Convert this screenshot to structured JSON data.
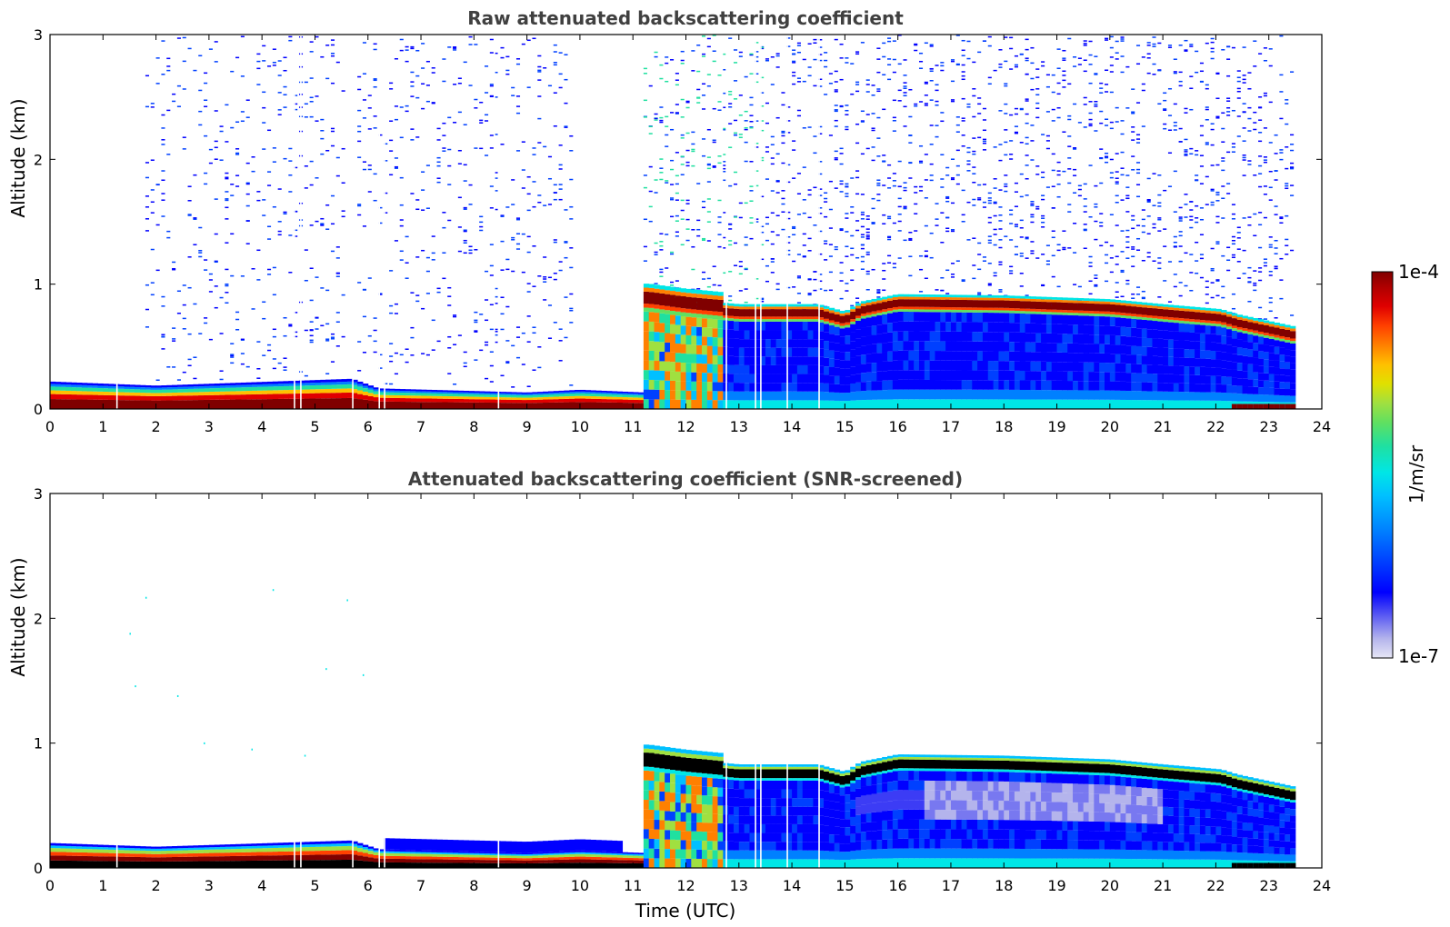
{
  "chart_data": [
    {
      "type": "heatmap",
      "title": "Raw attenuated backscattering coefficient",
      "xlabel": "",
      "ylabel": "Altitude (km)",
      "xlim": [
        0,
        24
      ],
      "ylim": [
        0,
        3
      ],
      "x_ticks": [
        "0",
        "1",
        "2",
        "3",
        "4",
        "5",
        "6",
        "7",
        "8",
        "9",
        "10",
        "11",
        "12",
        "13",
        "14",
        "15",
        "16",
        "17",
        "18",
        "19",
        "20",
        "21",
        "22",
        "23",
        "24"
      ],
      "y_ticks": [
        "0",
        "1",
        "2",
        "3"
      ],
      "data_end_hour": 23.5,
      "features": {
        "boundary_layer_top_km": [
          [
            0,
            0.2
          ],
          [
            2,
            0.17
          ],
          [
            5.7,
            0.22
          ],
          [
            6.2,
            0.15
          ],
          [
            9,
            0.12
          ],
          [
            10,
            0.14
          ],
          [
            11.2,
            0.12
          ]
        ],
        "cloud_base_km": [
          [
            11.3,
            0.78
          ],
          [
            12,
            0.74
          ],
          [
            13,
            0.7
          ],
          [
            14,
            0.7
          ],
          [
            14.5,
            0.7
          ],
          [
            15,
            0.64
          ],
          [
            15.3,
            0.72
          ],
          [
            16,
            0.78
          ],
          [
            18,
            0.77
          ],
          [
            20,
            0.74
          ],
          [
            21,
            0.7
          ],
          [
            22.1,
            0.66
          ],
          [
            22.4,
            0.62
          ],
          [
            23.5,
            0.52
          ]
        ],
        "noise_gap_hours": [
          [
            0,
            1.8
          ],
          [
            5.6,
            5.85
          ],
          [
            9.9,
            11.2
          ]
        ]
      }
    },
    {
      "type": "heatmap",
      "title": "Attenuated backscattering coefficient (SNR-screened)",
      "xlabel": "Time (UTC)",
      "ylabel": "Altitude (km)",
      "xlim": [
        0,
        24
      ],
      "ylim": [
        0,
        3
      ],
      "x_ticks": [
        "0",
        "1",
        "2",
        "3",
        "4",
        "5",
        "6",
        "7",
        "8",
        "9",
        "10",
        "11",
        "12",
        "13",
        "14",
        "15",
        "16",
        "17",
        "18",
        "19",
        "20",
        "21",
        "22",
        "23",
        "24"
      ],
      "y_ticks": [
        "0",
        "1",
        "2",
        "3"
      ],
      "data_end_hour": 23.5
    }
  ],
  "colorbar": {
    "max_label": "1e-4",
    "min_label": "1e-7",
    "units": "1/m/sr",
    "scale": "log",
    "colors": [
      "#e6e6f5",
      "#b4b4ec",
      "#7878f0",
      "#3c3cf5",
      "#0000ff",
      "#0040ff",
      "#0080ff",
      "#00c0ff",
      "#00e6e6",
      "#20e0a0",
      "#60e060",
      "#a0e040",
      "#e0e000",
      "#ffc000",
      "#ff8000",
      "#ff4000",
      "#e00000",
      "#b00000",
      "#800000"
    ]
  }
}
